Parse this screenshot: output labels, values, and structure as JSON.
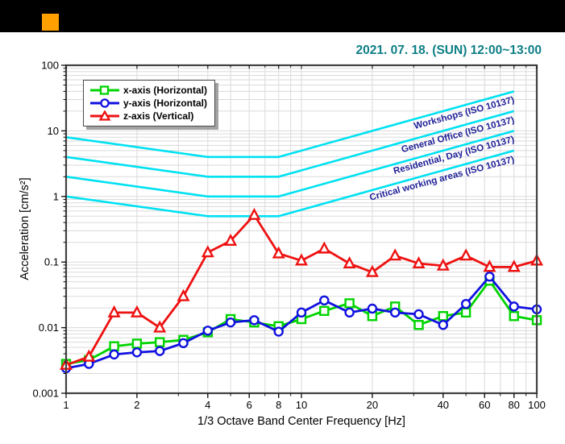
{
  "header": {
    "bar_color": "#000000",
    "accent_color": "#FFA000",
    "date_range": "2021. 07. 18. (SUN) 12:00~13:00",
    "date_color": "#0E7F86"
  },
  "chart_data": {
    "type": "line",
    "title": "",
    "xlabel": "1/3 Octave Band Center Frequency [Hz]",
    "ylabel": "Acceleration [cm/s²]",
    "x_scale": "log",
    "y_scale": "log",
    "xlim": [
      1,
      100
    ],
    "ylim": [
      0.001,
      100
    ],
    "grid": true,
    "legend_position": "top-left",
    "x_ticks": [
      1,
      2,
      4,
      6,
      8,
      10,
      20,
      40,
      60,
      80,
      100
    ],
    "x_tick_labels": [
      "1",
      "2",
      "4",
      "6",
      "8",
      "10",
      "20",
      "40",
      "60",
      "80",
      "100"
    ],
    "y_ticks": [
      100,
      10,
      1,
      0.1,
      0.01,
      0.001
    ],
    "y_tick_labels": [
      "100",
      "10",
      "1",
      "0.1",
      "0.01",
      "0.001"
    ],
    "frequencies": [
      1,
      1.25,
      1.6,
      2,
      2.5,
      3.15,
      4,
      5,
      6.3,
      8,
      10,
      12.5,
      16,
      20,
      25,
      31.5,
      40,
      50,
      63,
      80,
      100
    ],
    "series": [
      {
        "name": "x-axis (Horizontal)",
        "marker": "square",
        "color": "#00D400",
        "values": [
          0.0028,
          0.0032,
          0.0052,
          0.0057,
          0.006,
          0.0065,
          0.0085,
          0.0135,
          0.012,
          0.0105,
          0.0135,
          0.018,
          0.0235,
          0.015,
          0.021,
          0.011,
          0.015,
          0.017,
          0.052,
          0.015,
          0.013
        ]
      },
      {
        "name": "y-axis (Horizontal)",
        "marker": "circle",
        "color": "#1010E0",
        "values": [
          0.0024,
          0.0028,
          0.0039,
          0.0042,
          0.0044,
          0.0058,
          0.009,
          0.012,
          0.013,
          0.0087,
          0.017,
          0.026,
          0.017,
          0.0195,
          0.017,
          0.016,
          0.011,
          0.023,
          0.06,
          0.021,
          0.019
        ]
      },
      {
        "name": "z-axis (Vertical)",
        "marker": "triangle",
        "color": "#EE1111",
        "values": [
          0.0027,
          0.0036,
          0.017,
          0.017,
          0.01,
          0.03,
          0.14,
          0.21,
          0.52,
          0.135,
          0.105,
          0.16,
          0.095,
          0.07,
          0.125,
          0.095,
          0.088,
          0.125,
          0.084,
          0.084,
          0.105
        ]
      }
    ],
    "iso_lines": {
      "color": "#00E1F2",
      "label_color": "#1E1E96",
      "breakpoint_frequencies": [
        1,
        4,
        8,
        80
      ],
      "base_values": [
        1,
        0.5,
        0.5,
        5
      ],
      "lines": [
        {
          "label": "Workshops (ISO 10137)",
          "multiplier": 8
        },
        {
          "label": "General Office (ISO 10137)",
          "multiplier": 4
        },
        {
          "label": "Residential, Day (ISO 10137)",
          "multiplier": 2
        },
        {
          "label": "Critical working areas (ISO 10137)",
          "multiplier": 1
        }
      ]
    },
    "style": {
      "grid_color": "#DADADA",
      "frame_color": "#404040",
      "tick_color": "#111111",
      "text_color": "#000000"
    }
  }
}
